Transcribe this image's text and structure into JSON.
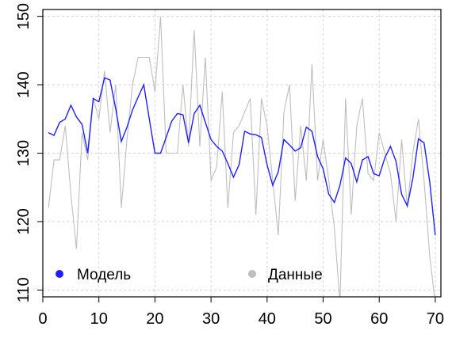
{
  "chart_data": {
    "type": "line",
    "title": "",
    "xlabel": "",
    "ylabel": "",
    "xlim": [
      0,
      71
    ],
    "ylim": [
      109,
      151
    ],
    "x_ticks": [
      0,
      10,
      20,
      30,
      40,
      50,
      60,
      70
    ],
    "y_ticks": [
      110,
      120,
      130,
      140,
      150
    ],
    "grid": true,
    "legend_position": "bottom",
    "series": [
      {
        "name": "Данные",
        "color": "#bebebe",
        "x": [
          1,
          2,
          3,
          4,
          5,
          6,
          7,
          8,
          9,
          10,
          11,
          12,
          13,
          14,
          15,
          16,
          17,
          18,
          19,
          20,
          21,
          22,
          23,
          24,
          25,
          26,
          27,
          28,
          29,
          30,
          31,
          32,
          33,
          34,
          35,
          36,
          37,
          38,
          39,
          40,
          41,
          42,
          43,
          44,
          45,
          46,
          47,
          48,
          49,
          50,
          51,
          52,
          53,
          54,
          55,
          56,
          57,
          58,
          59,
          60,
          61,
          62,
          63,
          64,
          65,
          66,
          67,
          68,
          69,
          70
        ],
        "y": [
          122,
          129,
          129,
          134,
          124,
          116,
          133,
          129,
          138,
          135,
          142,
          133,
          140,
          122,
          132,
          140,
          144,
          144,
          144,
          139,
          150,
          130,
          130,
          130,
          140,
          131,
          148,
          131,
          144,
          126,
          128,
          139,
          122,
          133,
          134,
          136,
          138,
          121,
          138,
          134,
          126,
          118,
          136,
          140,
          123,
          134,
          126,
          143,
          126,
          132,
          126,
          119,
          108,
          138,
          121,
          134,
          138,
          127,
          126,
          133,
          130,
          127,
          120,
          132,
          122,
          130,
          135,
          126,
          115,
          108
        ]
      },
      {
        "name": "Модель",
        "color": "#1f1fff",
        "x": [
          1,
          2,
          3,
          4,
          5,
          6,
          7,
          8,
          9,
          10,
          11,
          12,
          13,
          14,
          15,
          16,
          17,
          18,
          19,
          20,
          21,
          22,
          23,
          24,
          25,
          26,
          27,
          28,
          29,
          30,
          31,
          32,
          33,
          34,
          35,
          36,
          37,
          38,
          39,
          40,
          41,
          42,
          43,
          44,
          45,
          46,
          47,
          48,
          49,
          50,
          51,
          52,
          53,
          54,
          55,
          56,
          57,
          58,
          59,
          60,
          61,
          62,
          63,
          64,
          65,
          66,
          67,
          68,
          69,
          70
        ],
        "y": [
          133,
          132.6,
          134.5,
          135,
          137,
          135.3,
          134.2,
          130,
          138,
          137.5,
          141,
          140.7,
          136.5,
          131.7,
          133.8,
          136.3,
          138.2,
          140,
          135,
          130,
          130,
          132.3,
          134.7,
          135.8,
          135.6,
          131.5,
          135.8,
          137,
          134.5,
          132,
          131,
          130.3,
          128.5,
          126.5,
          128.3,
          133.2,
          132.8,
          132.7,
          132.3,
          128.3,
          125.3,
          127.3,
          132,
          131.2,
          130.3,
          130.8,
          133.8,
          133.2,
          129.5,
          127.7,
          124,
          122.8,
          125.3,
          129.3,
          128.5,
          125.8,
          129,
          129.5,
          127,
          126.7,
          129.3,
          131,
          128.8,
          124,
          122.3,
          126.3,
          132.1,
          131.5,
          125.8,
          118
        ]
      }
    ],
    "legend": [
      {
        "label": "Модель",
        "color": "#1f1fff"
      },
      {
        "label": "Данные",
        "color": "#bebebe"
      }
    ]
  }
}
